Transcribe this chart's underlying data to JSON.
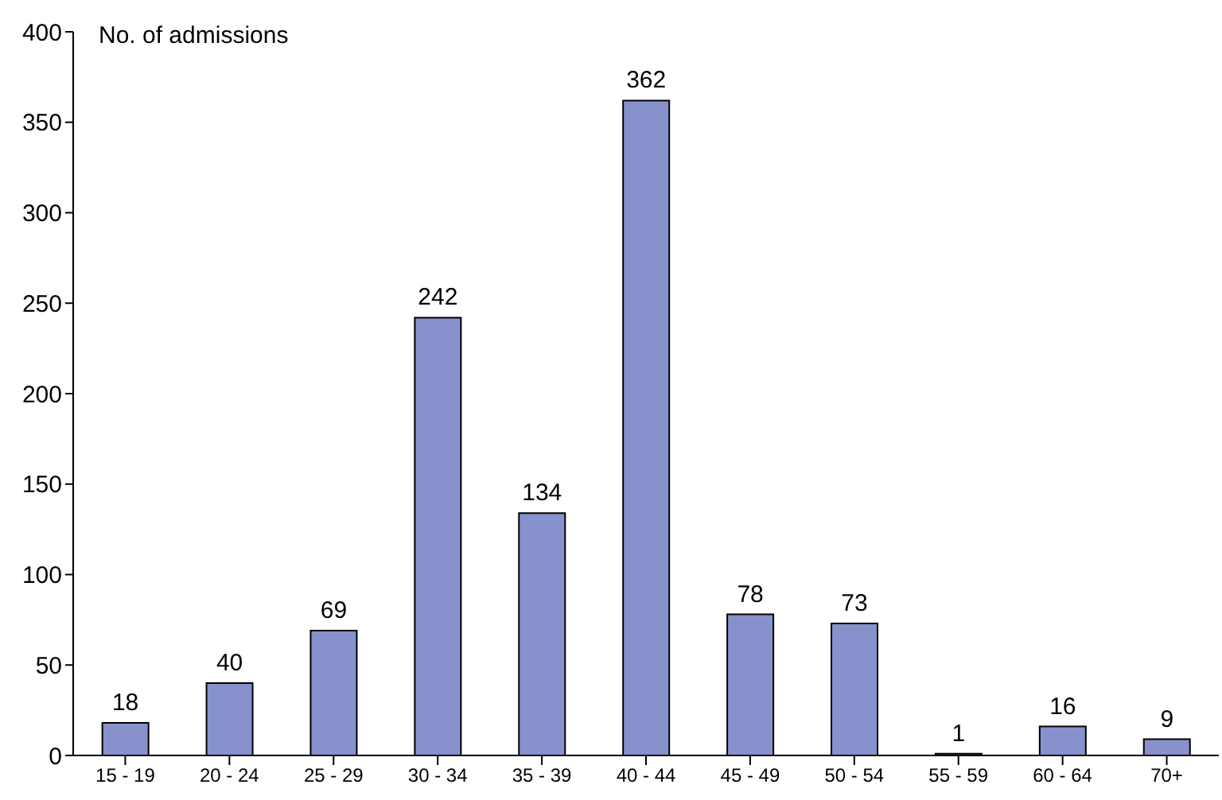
{
  "chart_data": {
    "type": "bar",
    "ylabel": "No. of admissions",
    "categories": [
      "15 - 19",
      "20 - 24",
      "25 - 29",
      "30 - 34",
      "35 - 39",
      "40 - 44",
      "45 - 49",
      "50 - 54",
      "55 - 59",
      "60 - 64",
      "70+"
    ],
    "values": [
      18,
      40,
      69,
      242,
      134,
      362,
      78,
      73,
      1,
      16,
      9
    ],
    "color": "#8792cc",
    "ylim": [
      0,
      400
    ],
    "yticks": [
      0,
      50,
      100,
      150,
      200,
      250,
      300,
      350,
      400
    ],
    "grid": false,
    "data_labels": true
  }
}
